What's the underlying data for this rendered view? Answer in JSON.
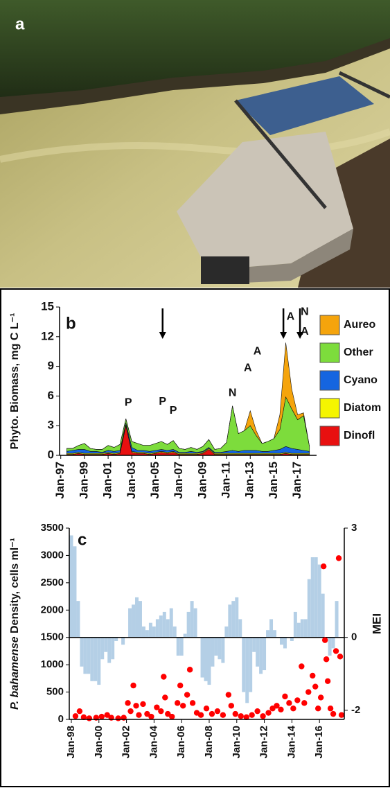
{
  "photo": {
    "label": "a"
  },
  "chart_data": [
    {
      "type": "area",
      "label": "b",
      "ylabel": "Phyto. Biomass, mg C L⁻¹",
      "xlim": [
        1996.9,
        2018.6
      ],
      "ylim": [
        0,
        15
      ],
      "yticks": [
        0,
        3,
        6,
        9,
        12,
        15
      ],
      "xticks": [
        {
          "value": 1997,
          "label": "Jan-97"
        },
        {
          "value": 1999,
          "label": "Jan-99"
        },
        {
          "value": 2001,
          "label": "Jan-01"
        },
        {
          "value": 2003,
          "label": "Jan-03"
        },
        {
          "value": 2005,
          "label": "Jan-05"
        },
        {
          "value": 2007,
          "label": "Jan-07"
        },
        {
          "value": 2009,
          "label": "Jan-09"
        },
        {
          "value": 2011,
          "label": "Jan-11"
        },
        {
          "value": 2013,
          "label": "Jan-13"
        },
        {
          "value": 2015,
          "label": "Jan-15"
        },
        {
          "value": 2017,
          "label": "Jan-17"
        }
      ],
      "x": [
        1997.5,
        1998,
        1998.5,
        1999,
        1999.5,
        2000,
        2000.5,
        2001,
        2001.5,
        2002,
        2002.5,
        2003,
        2003.5,
        2004,
        2004.5,
        2005,
        2005.5,
        2006,
        2006.5,
        2007,
        2007.5,
        2008,
        2008.5,
        2009,
        2009.5,
        2010,
        2010.5,
        2011,
        2011.5,
        2012,
        2012.5,
        2013,
        2013.5,
        2014,
        2014.5,
        2015,
        2015.5,
        2016,
        2016.5,
        2017,
        2017.5,
        2018
      ],
      "series": [
        {
          "name": "Aureo",
          "color": "#f5a40c",
          "values": [
            0,
            0,
            0,
            0,
            0,
            0,
            0,
            0,
            0,
            0,
            0,
            0,
            0,
            0,
            0,
            0,
            0,
            0,
            0,
            0,
            0,
            0,
            0,
            0,
            0,
            0,
            0,
            0,
            0,
            0,
            0,
            1.5,
            0.5,
            0,
            0,
            0,
            1.5,
            5.5,
            2.0,
            0.5,
            0.3,
            0
          ]
        },
        {
          "name": "Other",
          "color": "#7ddc3c",
          "values": [
            0.3,
            0.2,
            0.4,
            0.6,
            0.3,
            0.2,
            0.3,
            0.5,
            0.4,
            0.6,
            0.4,
            0.6,
            0.7,
            0.5,
            0.6,
            0.7,
            0.8,
            0.6,
            0.9,
            0.4,
            0.3,
            0.4,
            0.3,
            0.5,
            0.8,
            0.3,
            0.4,
            0.9,
            4.5,
            1.8,
            2.0,
            2.5,
            1.5,
            0.8,
            1.0,
            1.2,
            2.0,
            5.0,
            4.0,
            3.0,
            3.5,
            0.5
          ]
        },
        {
          "name": "Cyano",
          "color": "#1565e0",
          "values": [
            0.2,
            0.3,
            0.3,
            0.4,
            0.2,
            0.2,
            0.1,
            0.2,
            0.2,
            0.2,
            0.2,
            0.4,
            0.2,
            0.2,
            0.2,
            0.2,
            0.2,
            0.2,
            0.2,
            0.1,
            0.1,
            0.2,
            0.1,
            0.1,
            0.1,
            0.1,
            0.1,
            0.2,
            0.3,
            0.2,
            0.3,
            0.3,
            0.3,
            0.2,
            0.2,
            0.3,
            0.4,
            0.6,
            0.5,
            0.4,
            0.3,
            0.2
          ]
        },
        {
          "name": "Diatom",
          "color": "#f5f500",
          "values": [
            0.1,
            0.1,
            0.1,
            0.1,
            0.1,
            0.1,
            0.1,
            0.1,
            0.1,
            0.1,
            0.1,
            0.1,
            0.1,
            0.1,
            0.1,
            0.1,
            0.1,
            0.1,
            0.1,
            0.1,
            0.1,
            0.1,
            0.1,
            0.1,
            0.1,
            0.1,
            0.1,
            0.1,
            0.1,
            0.1,
            0.1,
            0.1,
            0.1,
            0.1,
            0.1,
            0.1,
            0.1,
            0.1,
            0.1,
            0.1,
            0.1,
            0.1
          ]
        },
        {
          "name": "Dinofl",
          "color": "#e81010",
          "values": [
            0.1,
            0.1,
            0.2,
            0.1,
            0.1,
            0.1,
            0.1,
            0.2,
            0.1,
            0.2,
            3.0,
            0.3,
            0.2,
            0.2,
            0.1,
            0.2,
            0.3,
            0.2,
            0.3,
            0.1,
            0.1,
            0.1,
            0.1,
            0.2,
            0.6,
            0.1,
            0.1,
            0.1,
            0.1,
            0.1,
            0.1,
            0.1,
            0.1,
            0.1,
            0.1,
            0.1,
            0.1,
            0.2,
            0.1,
            0.1,
            0.1,
            0.1
          ]
        }
      ],
      "annotations": [
        {
          "text": "P",
          "x": 2002.7,
          "y": 5.3
        },
        {
          "text": "P",
          "x": 2005.6,
          "y": 5.4
        },
        {
          "text": "P",
          "x": 2006.5,
          "y": 4.5
        },
        {
          "text": "N",
          "x": 2011.5,
          "y": 6.3
        },
        {
          "text": "A",
          "x": 2012.8,
          "y": 8.8
        },
        {
          "text": "A",
          "x": 2013.6,
          "y": 10.5
        },
        {
          "text": "A",
          "x": 2016.4,
          "y": 14.0
        },
        {
          "text": "N",
          "x": 2017.6,
          "y": 14.5
        },
        {
          "text": "A",
          "x": 2017.6,
          "y": 12.5
        }
      ],
      "arrows": [
        2005.6,
        2015.8,
        2017.2
      ]
    },
    {
      "type": "combo",
      "label": "c",
      "ylabel_italic": "P. bahamense",
      "ylabel": " Density, cells ml⁻¹",
      "y2label": "MEI",
      "xlim": [
        1997.85,
        2017.8
      ],
      "ylim": [
        0,
        3500
      ],
      "yticks": [
        0,
        500,
        1000,
        1500,
        2000,
        2500,
        3000,
        3500
      ],
      "y2lim": [
        -2.25,
        3
      ],
      "y2ticks": [
        -2,
        0,
        3
      ],
      "xticks": [
        {
          "value": 1998,
          "label": "Jan-98"
        },
        {
          "value": 2000,
          "label": "Jan-00"
        },
        {
          "value": 2002,
          "label": "Jan-02"
        },
        {
          "value": 2004,
          "label": "Jan-04"
        },
        {
          "value": 2006,
          "label": "Jan-06"
        },
        {
          "value": 2008,
          "label": "Jan-08"
        },
        {
          "value": 2010,
          "label": "Jan-10"
        },
        {
          "value": 2012,
          "label": "Jan-12"
        },
        {
          "value": 2014,
          "label": "Jan-14"
        },
        {
          "value": 2016,
          "label": "Jan-16"
        }
      ],
      "series": [
        {
          "type": "bar",
          "axis": "y2",
          "color": "#b4cfe6",
          "x": [
            1998,
            1998.25,
            1998.5,
            1998.75,
            1999,
            1999.25,
            1999.5,
            1999.75,
            2000,
            2000.25,
            2000.5,
            2000.75,
            2001,
            2001.25,
            2001.5,
            2001.75,
            2002,
            2002.25,
            2002.5,
            2002.75,
            2003,
            2003.25,
            2003.5,
            2003.75,
            2004,
            2004.25,
            2004.5,
            2004.75,
            2005,
            2005.25,
            2005.5,
            2005.75,
            2006,
            2006.25,
            2006.5,
            2006.75,
            2007,
            2007.25,
            2007.5,
            2007.75,
            2008,
            2008.25,
            2008.5,
            2008.75,
            2009,
            2009.25,
            2009.5,
            2009.75,
            2010,
            2010.25,
            2010.5,
            2010.75,
            2011,
            2011.25,
            2011.5,
            2011.75,
            2012,
            2012.25,
            2012.5,
            2012.75,
            2013,
            2013.25,
            2013.5,
            2013.75,
            2014,
            2014.25,
            2014.5,
            2014.75,
            2015,
            2015.25,
            2015.5,
            2015.75,
            2016,
            2016.25,
            2016.5,
            2016.75,
            2017,
            2017.25
          ],
          "values": [
            2.8,
            2.5,
            1.0,
            -0.8,
            -1.0,
            -1.0,
            -1.2,
            -1.2,
            -1.3,
            -0.6,
            -0.4,
            -0.7,
            -0.6,
            -0.1,
            0.0,
            -0.2,
            0.0,
            0.8,
            0.9,
            1.1,
            1.0,
            0.3,
            0.2,
            0.4,
            0.3,
            0.5,
            0.6,
            0.7,
            0.5,
            0.8,
            0.3,
            -0.5,
            -0.5,
            0.1,
            0.7,
            1.0,
            0.8,
            0.0,
            -1.1,
            -1.2,
            -1.3,
            -0.8,
            -0.5,
            -0.6,
            -0.7,
            0.3,
            0.9,
            1.0,
            1.1,
            0.5,
            -1.5,
            -1.8,
            -1.5,
            -0.4,
            -0.8,
            -1.0,
            -0.9,
            0.2,
            0.5,
            0.2,
            0.0,
            -0.2,
            -0.3,
            0.0,
            -0.1,
            0.7,
            0.4,
            0.5,
            0.5,
            1.6,
            2.2,
            2.2,
            2.0,
            1.2,
            0.0,
            -0.5,
            -0.3,
            1.0
          ]
        },
        {
          "type": "scatter",
          "color": "#ff0000",
          "x": [
            1998.3,
            1998.6,
            1998.9,
            1999.3,
            1999.8,
            2000.2,
            2000.6,
            2000.9,
            2001.4,
            2001.8,
            2002.1,
            2002.3,
            2002.5,
            2002.7,
            2002.9,
            2003.2,
            2003.5,
            2003.8,
            2004.2,
            2004.5,
            2004.7,
            2004.8,
            2005.0,
            2005.3,
            2005.7,
            2005.9,
            2006.1,
            2006.4,
            2006.6,
            2006.8,
            2007.1,
            2007.4,
            2007.8,
            2008.2,
            2008.6,
            2009.0,
            2009.4,
            2009.6,
            2009.9,
            2010.3,
            2010.7,
            2011.1,
            2011.5,
            2011.9,
            2012.3,
            2012.6,
            2012.9,
            2013.2,
            2013.5,
            2013.8,
            2014.1,
            2014.4,
            2014.7,
            2014.9,
            2015.2,
            2015.5,
            2015.7,
            2015.9,
            2016.1,
            2016.3,
            2016.4,
            2016.5,
            2016.6,
            2016.8,
            2017.0,
            2017.2,
            2017.4,
            2017.5,
            2017.6
          ],
          "values": [
            60,
            150,
            40,
            20,
            30,
            50,
            80,
            30,
            20,
            30,
            300,
            150,
            620,
            250,
            80,
            280,
            100,
            50,
            220,
            150,
            780,
            400,
            100,
            50,
            300,
            620,
            250,
            450,
            910,
            300,
            120,
            80,
            200,
            100,
            150,
            80,
            450,
            250,
            100,
            60,
            40,
            80,
            150,
            60,
            120,
            200,
            250,
            180,
            420,
            300,
            200,
            350,
            970,
            300,
            500,
            800,
            600,
            200,
            400,
            2800,
            1450,
            1100,
            700,
            200,
            100,
            1250,
            2950,
            1150,
            80
          ]
        }
      ]
    }
  ]
}
